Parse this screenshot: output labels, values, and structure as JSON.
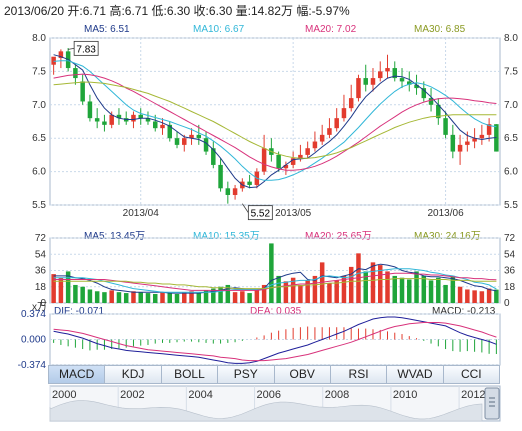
{
  "header": {
    "date": "2013/06/20",
    "open_label": "开:",
    "open": "6.71",
    "high_label": "高:",
    "high": "6.71",
    "low_label": "低:",
    "low": "6.30",
    "close_label": "收:",
    "close": "6.30",
    "volume_label": "量:",
    "volume": "14.82万",
    "change_label": "幅:",
    "change": "-5.97%"
  },
  "price_legend": {
    "ma5": "MA5: 6.51",
    "ma10": "MA10: 6.67",
    "ma20": "MA20: 7.02",
    "ma30": "MA30: 6.85"
  },
  "volume_legend": {
    "ma5": "MA5: 13.45万",
    "ma10": "MA10: 15.35万",
    "ma20": "MA20: 25.65万",
    "ma30": "MA30: 24.16万"
  },
  "volume_unit": "x万",
  "macd_legend": {
    "dif": "DIF: -0.071",
    "dea": "DEA: 0.035",
    "macd": "MACD: -0.213"
  },
  "tabs": [
    "MACD",
    "KDJ",
    "BOLL",
    "PSY",
    "OBV",
    "RSI",
    "WVAD",
    "CCI"
  ],
  "active_tab": "MACD",
  "colors": {
    "up": "#e23b2e",
    "down": "#1fa53a",
    "ma5": "#1f3a8a",
    "ma10": "#31b7d8",
    "ma20": "#d8327b",
    "ma30": "#a6b836",
    "grid": "#c9d9ea",
    "axis_text": "#333333"
  },
  "chart_data": [
    {
      "type": "candlestick",
      "title": "2013/06/20",
      "x_labels": [
        "2013/04",
        "2013/05",
        "2013/06"
      ],
      "x_label_at_bar": [
        12,
        33,
        54
      ],
      "ylim": [
        5.5,
        8.0
      ],
      "yticks": [
        "5.5",
        "6.0",
        "6.5",
        "7.0",
        "7.5",
        "8.0"
      ],
      "annotations": [
        {
          "text": "7.83",
          "bar": 2,
          "value": 7.83
        },
        {
          "text": "5.52",
          "bar": 26,
          "value": 5.52
        }
      ],
      "bars": {
        "open": [
          7.6,
          7.7,
          7.8,
          7.55,
          7.35,
          7.05,
          6.8,
          6.75,
          6.7,
          6.85,
          6.8,
          6.75,
          6.85,
          6.8,
          6.75,
          6.65,
          6.7,
          6.5,
          6.4,
          6.5,
          6.55,
          6.5,
          6.35,
          6.1,
          5.75,
          5.65,
          5.75,
          5.85,
          5.8,
          6.0,
          6.35,
          6.25,
          6.05,
          6.1,
          6.2,
          6.25,
          6.35,
          6.45,
          6.55,
          6.65,
          6.8,
          6.95,
          7.1,
          7.4,
          7.3,
          7.4,
          7.5,
          7.55,
          7.4,
          7.35,
          7.3,
          7.25,
          7.1,
          7.0,
          6.8,
          6.55,
          6.3,
          6.4,
          6.45,
          6.5,
          6.55,
          6.71
        ],
        "high": [
          7.7,
          7.83,
          7.85,
          7.6,
          7.45,
          7.15,
          6.95,
          6.85,
          6.9,
          6.95,
          6.9,
          6.9,
          6.95,
          6.9,
          6.85,
          6.8,
          6.75,
          6.6,
          6.55,
          6.65,
          6.7,
          6.6,
          6.45,
          6.2,
          5.85,
          5.8,
          5.9,
          5.95,
          6.05,
          6.55,
          6.5,
          6.3,
          6.15,
          6.3,
          6.4,
          6.45,
          6.6,
          6.7,
          6.8,
          6.95,
          7.15,
          7.3,
          7.45,
          7.6,
          7.55,
          7.65,
          7.75,
          7.65,
          7.55,
          7.5,
          7.45,
          7.35,
          7.25,
          7.1,
          6.9,
          6.7,
          6.55,
          6.6,
          6.65,
          6.7,
          6.8,
          6.71
        ],
        "low": [
          7.45,
          7.55,
          7.5,
          7.3,
          7.0,
          6.75,
          6.65,
          6.6,
          6.65,
          6.7,
          6.7,
          6.65,
          6.7,
          6.7,
          6.6,
          6.55,
          6.45,
          6.35,
          6.3,
          6.4,
          6.4,
          6.25,
          6.05,
          5.7,
          5.52,
          5.58,
          5.7,
          5.75,
          5.75,
          5.95,
          6.15,
          6.0,
          5.95,
          6.05,
          6.15,
          6.2,
          6.3,
          6.4,
          6.5,
          6.6,
          6.75,
          6.9,
          7.05,
          7.2,
          7.2,
          7.35,
          7.4,
          7.35,
          7.25,
          7.2,
          7.15,
          7.05,
          6.9,
          6.7,
          6.5,
          6.2,
          6.1,
          6.3,
          6.35,
          6.4,
          6.45,
          6.3
        ],
        "close": [
          7.72,
          7.8,
          7.55,
          7.4,
          7.05,
          6.8,
          6.75,
          6.7,
          6.85,
          6.8,
          6.75,
          6.85,
          6.8,
          6.75,
          6.65,
          6.7,
          6.5,
          6.4,
          6.5,
          6.55,
          6.5,
          6.3,
          6.1,
          5.75,
          5.65,
          5.75,
          5.85,
          5.8,
          6.0,
          6.35,
          6.25,
          6.05,
          6.1,
          6.2,
          6.25,
          6.35,
          6.45,
          6.55,
          6.65,
          6.8,
          6.95,
          7.1,
          7.4,
          7.3,
          7.4,
          7.5,
          7.55,
          7.4,
          7.35,
          7.3,
          7.25,
          7.1,
          7.0,
          6.8,
          6.55,
          6.3,
          6.4,
          6.45,
          6.5,
          6.55,
          6.71,
          6.3
        ]
      },
      "series": [
        {
          "name": "MA5",
          "values": [
            7.75,
            7.72,
            7.68,
            7.6,
            7.52,
            7.3,
            7.1,
            6.95,
            6.85,
            6.8,
            6.78,
            6.78,
            6.8,
            6.8,
            6.77,
            6.73,
            6.68,
            6.6,
            6.52,
            6.5,
            6.48,
            6.43,
            6.33,
            6.2,
            6.05,
            5.9,
            5.8,
            5.76,
            5.77,
            5.85,
            5.95,
            6.02,
            6.1,
            6.18,
            6.19,
            6.2,
            6.28,
            6.37,
            6.45,
            6.55,
            6.68,
            6.82,
            6.98,
            7.12,
            7.22,
            7.32,
            7.4,
            7.43,
            7.42,
            7.38,
            7.3,
            7.22,
            7.12,
            7.0,
            6.88,
            6.75,
            6.62,
            6.54,
            6.5,
            6.48,
            6.5,
            6.51
          ]
        },
        {
          "name": "MA10",
          "values": [
            7.65,
            7.66,
            7.66,
            7.62,
            7.58,
            7.5,
            7.4,
            7.3,
            7.2,
            7.1,
            7.0,
            6.92,
            6.87,
            6.84,
            6.81,
            6.78,
            6.75,
            6.71,
            6.67,
            6.63,
            6.58,
            6.53,
            6.46,
            6.38,
            6.29,
            6.19,
            6.08,
            5.98,
            5.9,
            5.87,
            5.87,
            5.88,
            5.91,
            5.95,
            6.0,
            6.06,
            6.13,
            6.2,
            6.28,
            6.36,
            6.44,
            6.55,
            6.66,
            6.78,
            6.9,
            7.01,
            7.11,
            7.2,
            7.27,
            7.31,
            7.33,
            7.31,
            7.27,
            7.21,
            7.14,
            7.06,
            6.96,
            6.87,
            6.79,
            6.73,
            6.69,
            6.67
          ]
        },
        {
          "name": "MA20",
          "values": [
            7.4,
            7.42,
            7.44,
            7.45,
            7.46,
            7.45,
            7.43,
            7.4,
            7.36,
            7.31,
            7.25,
            7.2,
            7.14,
            7.08,
            7.02,
            6.96,
            6.9,
            6.84,
            6.78,
            6.72,
            6.66,
            6.6,
            6.54,
            6.48,
            6.42,
            6.36,
            6.29,
            6.22,
            6.16,
            6.11,
            6.07,
            6.04,
            6.02,
            6.02,
            6.03,
            6.05,
            6.08,
            6.12,
            6.17,
            6.23,
            6.3,
            6.37,
            6.44,
            6.52,
            6.6,
            6.68,
            6.75,
            6.82,
            6.89,
            6.95,
            7.0,
            7.04,
            7.07,
            7.09,
            7.1,
            7.1,
            7.09,
            7.08,
            7.06,
            7.05,
            7.03,
            7.02
          ]
        },
        {
          "name": "MA30",
          "values": [
            7.3,
            7.31,
            7.32,
            7.33,
            7.34,
            7.34,
            7.33,
            7.32,
            7.3,
            7.28,
            7.26,
            7.23,
            7.2,
            7.17,
            7.13,
            7.09,
            7.05,
            7.0,
            6.95,
            6.9,
            6.85,
            6.8,
            6.75,
            6.69,
            6.63,
            6.57,
            6.51,
            6.45,
            6.4,
            6.35,
            6.3,
            6.26,
            6.23,
            6.21,
            6.2,
            6.2,
            6.21,
            6.23,
            6.25,
            6.28,
            6.32,
            6.36,
            6.41,
            6.46,
            6.51,
            6.56,
            6.61,
            6.66,
            6.7,
            6.74,
            6.77,
            6.8,
            6.82,
            6.83,
            6.84,
            6.85,
            6.85,
            6.85,
            6.85,
            6.85,
            6.85,
            6.85
          ]
        }
      ]
    },
    {
      "type": "bar",
      "ylim": [
        0,
        72
      ],
      "yticks": [
        "0",
        "18",
        "36",
        "54",
        "72"
      ],
      "unit": "x万",
      "values": [
        32,
        28,
        35,
        20,
        18,
        15,
        13,
        12,
        14,
        12,
        11,
        13,
        12,
        11,
        10,
        12,
        11,
        10,
        12,
        13,
        11,
        14,
        16,
        18,
        20,
        12,
        13,
        11,
        14,
        20,
        66,
        30,
        24,
        28,
        20,
        25,
        30,
        45,
        22,
        25,
        30,
        40,
        55,
        35,
        45,
        42,
        35,
        30,
        28,
        26,
        35,
        30,
        25,
        28,
        20,
        30,
        18,
        15,
        14,
        13,
        16,
        14.82
      ],
      "series": [
        {
          "name": "MA5",
          "values": [
            30,
            30,
            30,
            28,
            27,
            25,
            22,
            18,
            15,
            14,
            13,
            12,
            12,
            12,
            12,
            12,
            11,
            11,
            11,
            11,
            11,
            12,
            13,
            14,
            16,
            17,
            16,
            15,
            15,
            16,
            25,
            28,
            31,
            33,
            34,
            26,
            25,
            30,
            29,
            28,
            30,
            32,
            38,
            37,
            41,
            43,
            42,
            40,
            36,
            34,
            33,
            30,
            29,
            29,
            28,
            27,
            25,
            22,
            19,
            18,
            15,
            13.45
          ]
        },
        {
          "name": "MA10",
          "values": [
            28,
            28,
            28,
            28,
            28,
            27,
            26,
            24,
            22,
            20,
            18,
            16,
            15,
            14,
            13,
            12,
            12,
            12,
            12,
            12,
            12,
            12,
            12,
            13,
            14,
            15,
            15,
            15,
            15,
            16,
            20,
            22,
            23,
            24,
            25,
            25,
            26,
            29,
            30,
            29,
            28,
            29,
            33,
            34,
            35,
            36,
            37,
            38,
            38,
            38,
            37,
            36,
            34,
            33,
            31,
            30,
            28,
            26,
            23,
            22,
            20,
            15.35
          ]
        },
        {
          "name": "MA20",
          "values": [
            26,
            26,
            26,
            26,
            26,
            26,
            26,
            26,
            25,
            24,
            23,
            22,
            21,
            20,
            19,
            18,
            17,
            16,
            15,
            14,
            14,
            14,
            14,
            14,
            14,
            14,
            14,
            14,
            14,
            15,
            17,
            18,
            19,
            20,
            21,
            21,
            22,
            23,
            24,
            25,
            26,
            27,
            28,
            29,
            30,
            31,
            32,
            33,
            33,
            33,
            32,
            32,
            31,
            31,
            30,
            29,
            28,
            28,
            27,
            27,
            26,
            25.65
          ]
        },
        {
          "name": "MA30",
          "values": [
            24,
            24,
            24,
            24,
            24,
            24,
            24,
            24,
            24,
            24,
            24,
            23,
            23,
            22,
            22,
            21,
            21,
            20,
            20,
            19,
            18,
            18,
            17,
            17,
            17,
            16,
            16,
            16,
            16,
            16,
            17,
            18,
            18,
            19,
            19,
            20,
            20,
            21,
            22,
            22,
            23,
            24,
            24,
            25,
            25,
            26,
            26,
            27,
            27,
            27,
            27,
            27,
            26,
            26,
            26,
            25,
            25,
            25,
            24,
            24,
            24,
            24.16
          ]
        }
      ]
    },
    {
      "type": "bar",
      "ylim": [
        -0.374,
        0.374
      ],
      "yticks": [
        "0.374",
        "0.000",
        "-0.374"
      ],
      "values": [
        -0.05,
        -0.08,
        -0.1,
        -0.12,
        -0.14,
        -0.16,
        -0.15,
        -0.15,
        -0.14,
        -0.13,
        -0.12,
        -0.1,
        -0.09,
        -0.08,
        -0.06,
        -0.05,
        -0.05,
        -0.04,
        -0.03,
        -0.03,
        -0.04,
        -0.05,
        -0.06,
        -0.06,
        -0.05,
        -0.04,
        -0.02,
        0.0,
        0.03,
        0.06,
        0.1,
        0.13,
        0.15,
        0.17,
        0.18,
        0.19,
        0.18,
        0.18,
        0.18,
        0.18,
        0.18,
        0.17,
        0.16,
        0.16,
        0.15,
        0.14,
        0.12,
        0.1,
        0.08,
        0.05,
        0.02,
        -0.02,
        -0.06,
        -0.1,
        -0.14,
        -0.17,
        -0.18,
        -0.17,
        -0.18,
        -0.19,
        -0.21,
        -0.213
      ],
      "series": [
        {
          "name": "DIF",
          "values": [
            0.12,
            0.1,
            0.08,
            0.05,
            0.02,
            -0.02,
            -0.06,
            -0.09,
            -0.12,
            -0.14,
            -0.16,
            -0.17,
            -0.18,
            -0.19,
            -0.2,
            -0.21,
            -0.22,
            -0.23,
            -0.24,
            -0.25,
            -0.26,
            -0.28,
            -0.3,
            -0.32,
            -0.34,
            -0.35,
            -0.35,
            -0.34,
            -0.32,
            -0.28,
            -0.24,
            -0.2,
            -0.17,
            -0.14,
            -0.11,
            -0.08,
            -0.04,
            0.0,
            0.04,
            0.08,
            0.12,
            0.17,
            0.22,
            0.26,
            0.3,
            0.32,
            0.33,
            0.33,
            0.32,
            0.3,
            0.28,
            0.26,
            0.24,
            0.22,
            0.2,
            0.15,
            0.1,
            0.06,
            0.03,
            0.0,
            -0.03,
            -0.071
          ]
        },
        {
          "name": "DEA",
          "values": [
            0.15,
            0.14,
            0.13,
            0.11,
            0.09,
            0.06,
            0.03,
            0.0,
            -0.03,
            -0.06,
            -0.09,
            -0.11,
            -0.13,
            -0.15,
            -0.16,
            -0.17,
            -0.18,
            -0.19,
            -0.2,
            -0.21,
            -0.22,
            -0.23,
            -0.24,
            -0.26,
            -0.27,
            -0.28,
            -0.3,
            -0.31,
            -0.31,
            -0.31,
            -0.3,
            -0.29,
            -0.28,
            -0.26,
            -0.24,
            -0.22,
            -0.19,
            -0.16,
            -0.13,
            -0.1,
            -0.07,
            -0.04,
            0.0,
            0.04,
            0.08,
            0.12,
            0.16,
            0.19,
            0.21,
            0.23,
            0.24,
            0.25,
            0.25,
            0.25,
            0.24,
            0.22,
            0.2,
            0.17,
            0.14,
            0.11,
            0.07,
            0.035
          ]
        }
      ]
    }
  ],
  "timeline": {
    "labels": [
      "2000",
      "2002",
      "2004",
      "2006",
      "2008",
      "2010",
      "2012"
    ]
  }
}
